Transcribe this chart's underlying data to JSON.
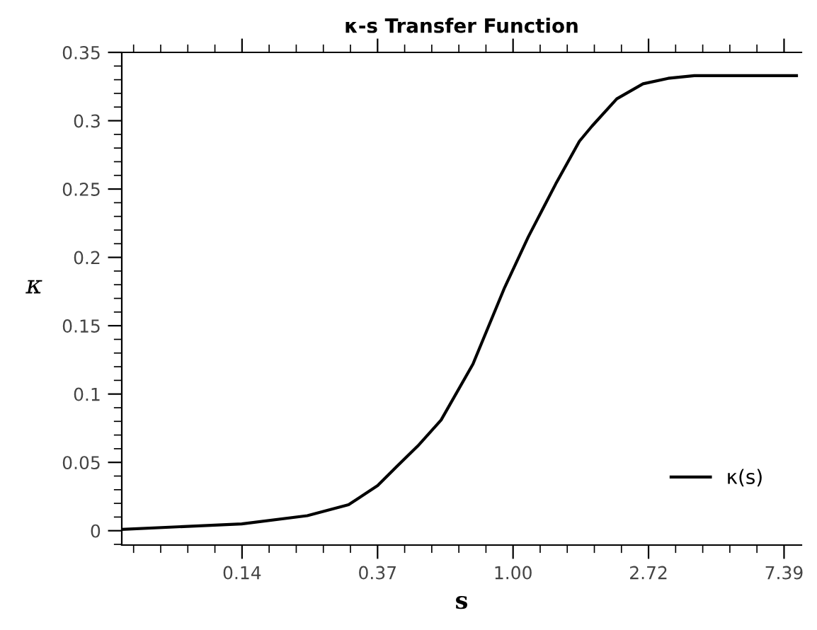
{
  "chart_data": {
    "type": "line",
    "title": "κ-s Transfer Function",
    "xlabel": "s",
    "ylabel": "κ",
    "log": "x",
    "xlim": [
      0.0557,
      8.4
    ],
    "ylim": [
      -0.0105,
      0.35
    ],
    "xticks": [
      {
        "value": 0.1353,
        "label": "0.14"
      },
      {
        "value": 0.3679,
        "label": "0.37"
      },
      {
        "value": 1,
        "label": "1.00"
      },
      {
        "value": 2.718,
        "label": "2.72"
      },
      {
        "value": 7.389,
        "label": "7.39"
      }
    ],
    "yticks": [
      0,
      0.05,
      0.1,
      0.15,
      0.2,
      0.25,
      0.3,
      0.35
    ],
    "grid": false,
    "legend": "bottom right",
    "marker": "none",
    "line_style": "solid",
    "series": [
      {
        "name": "κ(s)",
        "color": "#000000",
        "x": [
          0.0557,
          0.135,
          0.219,
          0.297,
          0.368,
          0.424,
          0.495,
          0.588,
          0.744,
          0.94,
          1.119,
          1.372,
          1.632,
          1.79,
          2.15,
          2.61,
          3.14,
          3.81,
          8.1
        ],
        "values": [
          0.001,
          0.005,
          0.011,
          0.019,
          0.033,
          0.047,
          0.062,
          0.081,
          0.122,
          0.178,
          0.215,
          0.254,
          0.285,
          0.296,
          0.316,
          0.327,
          0.331,
          0.333,
          0.333
        ]
      }
    ]
  }
}
